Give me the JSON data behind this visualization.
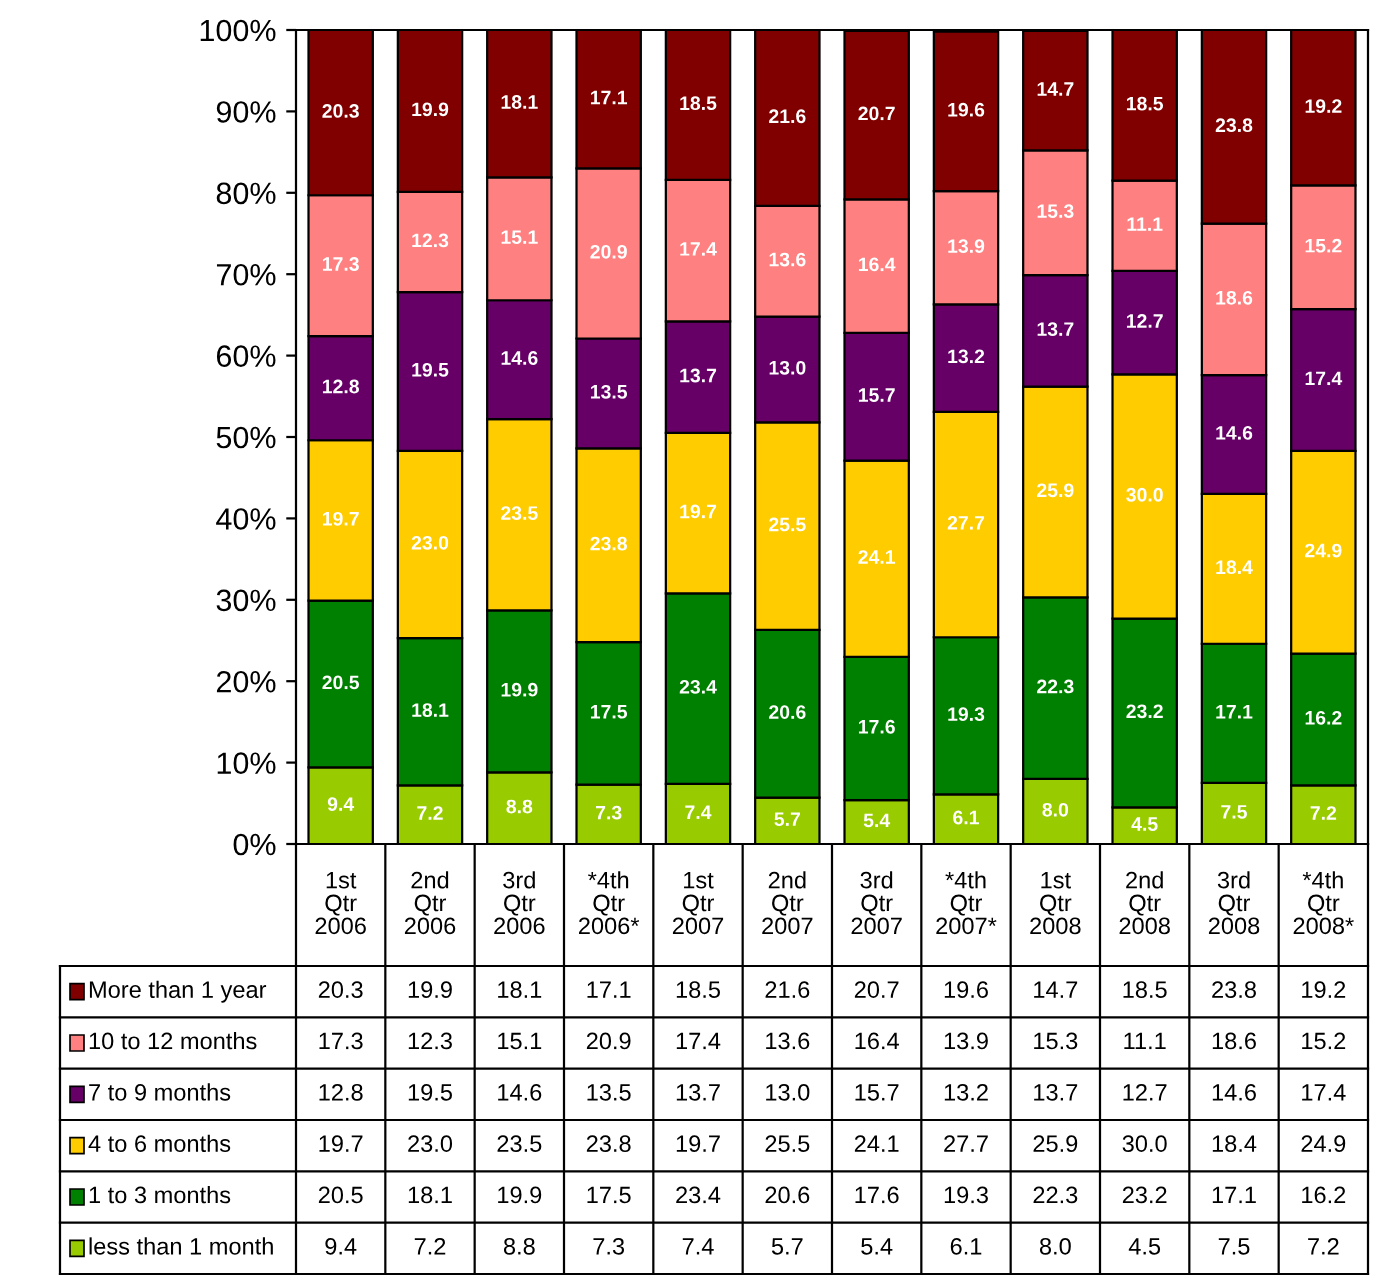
{
  "chart_data": {
    "type": "bar",
    "stacked": true,
    "grid": false,
    "legend": "bottom",
    "categories": [
      "1st\nQtr\n2006",
      "2nd\nQtr\n2006",
      "3rd\nQtr\n2006",
      "*4th\nQtr\n2006*",
      "1st\nQtr\n2007",
      "2nd\nQtr\n2007",
      "3rd\nQtr\n2007",
      "*4th\nQtr\n2007*",
      "1st\nQtr\n2008",
      "2nd\nQtr\n2008",
      "3rd\nQtr\n2008",
      "*4th\nQtr\n2008*"
    ],
    "series": [
      {
        "name": "less than 1 month",
        "color": "#99cc00",
        "values": [
          9.4,
          7.2,
          8.8,
          7.3,
          7.4,
          5.7,
          5.4,
          6.1,
          8.0,
          4.5,
          7.5,
          7.2
        ],
        "value_labels": [
          "9.4",
          "7.2",
          "8.8",
          "7.3",
          "7.4",
          "5.7",
          "5.4",
          "6.1",
          "8.0",
          "4.5",
          "7.5",
          "7.2"
        ]
      },
      {
        "name": "1 to 3 months",
        "color": "#008000",
        "values": [
          20.5,
          18.1,
          19.9,
          17.5,
          23.4,
          20.6,
          17.6,
          19.3,
          22.3,
          23.2,
          17.1,
          16.2
        ],
        "value_labels": [
          "20.5",
          "18.1",
          "19.9",
          "17.5",
          "23.4",
          "20.6",
          "17.6",
          "19.3",
          "22.3",
          "23.2",
          "17.1",
          "16.2"
        ]
      },
      {
        "name": "4 to 6 months",
        "color": "#ffcc00",
        "values": [
          19.7,
          23.0,
          23.5,
          23.8,
          19.7,
          25.5,
          24.1,
          27.7,
          25.9,
          30.0,
          18.4,
          24.9
        ],
        "value_labels": [
          "19.7",
          "23.0",
          "23.5",
          "23.8",
          "19.7",
          "25.5",
          "24.1",
          "27.7",
          "25.9",
          "30.0",
          "18.4",
          "24.9"
        ]
      },
      {
        "name": "7 to 9 months",
        "color": "#660066",
        "values": [
          12.8,
          19.5,
          14.6,
          13.5,
          13.7,
          13.0,
          15.7,
          13.2,
          13.7,
          12.7,
          14.6,
          17.4
        ],
        "value_labels": [
          "12.8",
          "19.5",
          "14.6",
          "13.5",
          "13.7",
          "13.0",
          "15.7",
          "13.2",
          "13.7",
          "12.7",
          "14.6",
          "17.4"
        ]
      },
      {
        "name": "10 to 12 months",
        "color": "#ff8080",
        "values": [
          17.3,
          12.3,
          15.1,
          20.9,
          17.4,
          13.6,
          16.4,
          13.9,
          15.3,
          11.1,
          18.6,
          15.2
        ],
        "value_labels": [
          "17.3",
          "12.3",
          "15.1",
          "20.9",
          "17.4",
          "13.6",
          "16.4",
          "13.9",
          "15.3",
          "11.1",
          "18.6",
          "15.2"
        ]
      },
      {
        "name": "More than 1 year",
        "color": "#800000",
        "values": [
          20.3,
          19.9,
          18.1,
          17.1,
          18.5,
          21.6,
          20.7,
          19.6,
          14.7,
          18.5,
          23.8,
          19.2
        ],
        "value_labels": [
          "20.3",
          "19.9",
          "18.1",
          "17.1",
          "18.5",
          "21.6",
          "20.7",
          "19.6",
          "14.7",
          "18.5",
          "23.8",
          "19.2"
        ]
      }
    ],
    "ylim": [
      0,
      100
    ],
    "yticks": [
      {
        "value": 0,
        "label": "0%"
      },
      {
        "value": 10,
        "label": "10%"
      },
      {
        "value": 20,
        "label": "20%"
      },
      {
        "value": 30,
        "label": "30%"
      },
      {
        "value": 40,
        "label": "40%"
      },
      {
        "value": 50,
        "label": "50%"
      },
      {
        "value": 60,
        "label": "60%"
      },
      {
        "value": 70,
        "label": "70%"
      },
      {
        "value": 80,
        "label": "80%"
      },
      {
        "value": 90,
        "label": "90%"
      },
      {
        "value": 100,
        "label": "100%"
      }
    ]
  }
}
